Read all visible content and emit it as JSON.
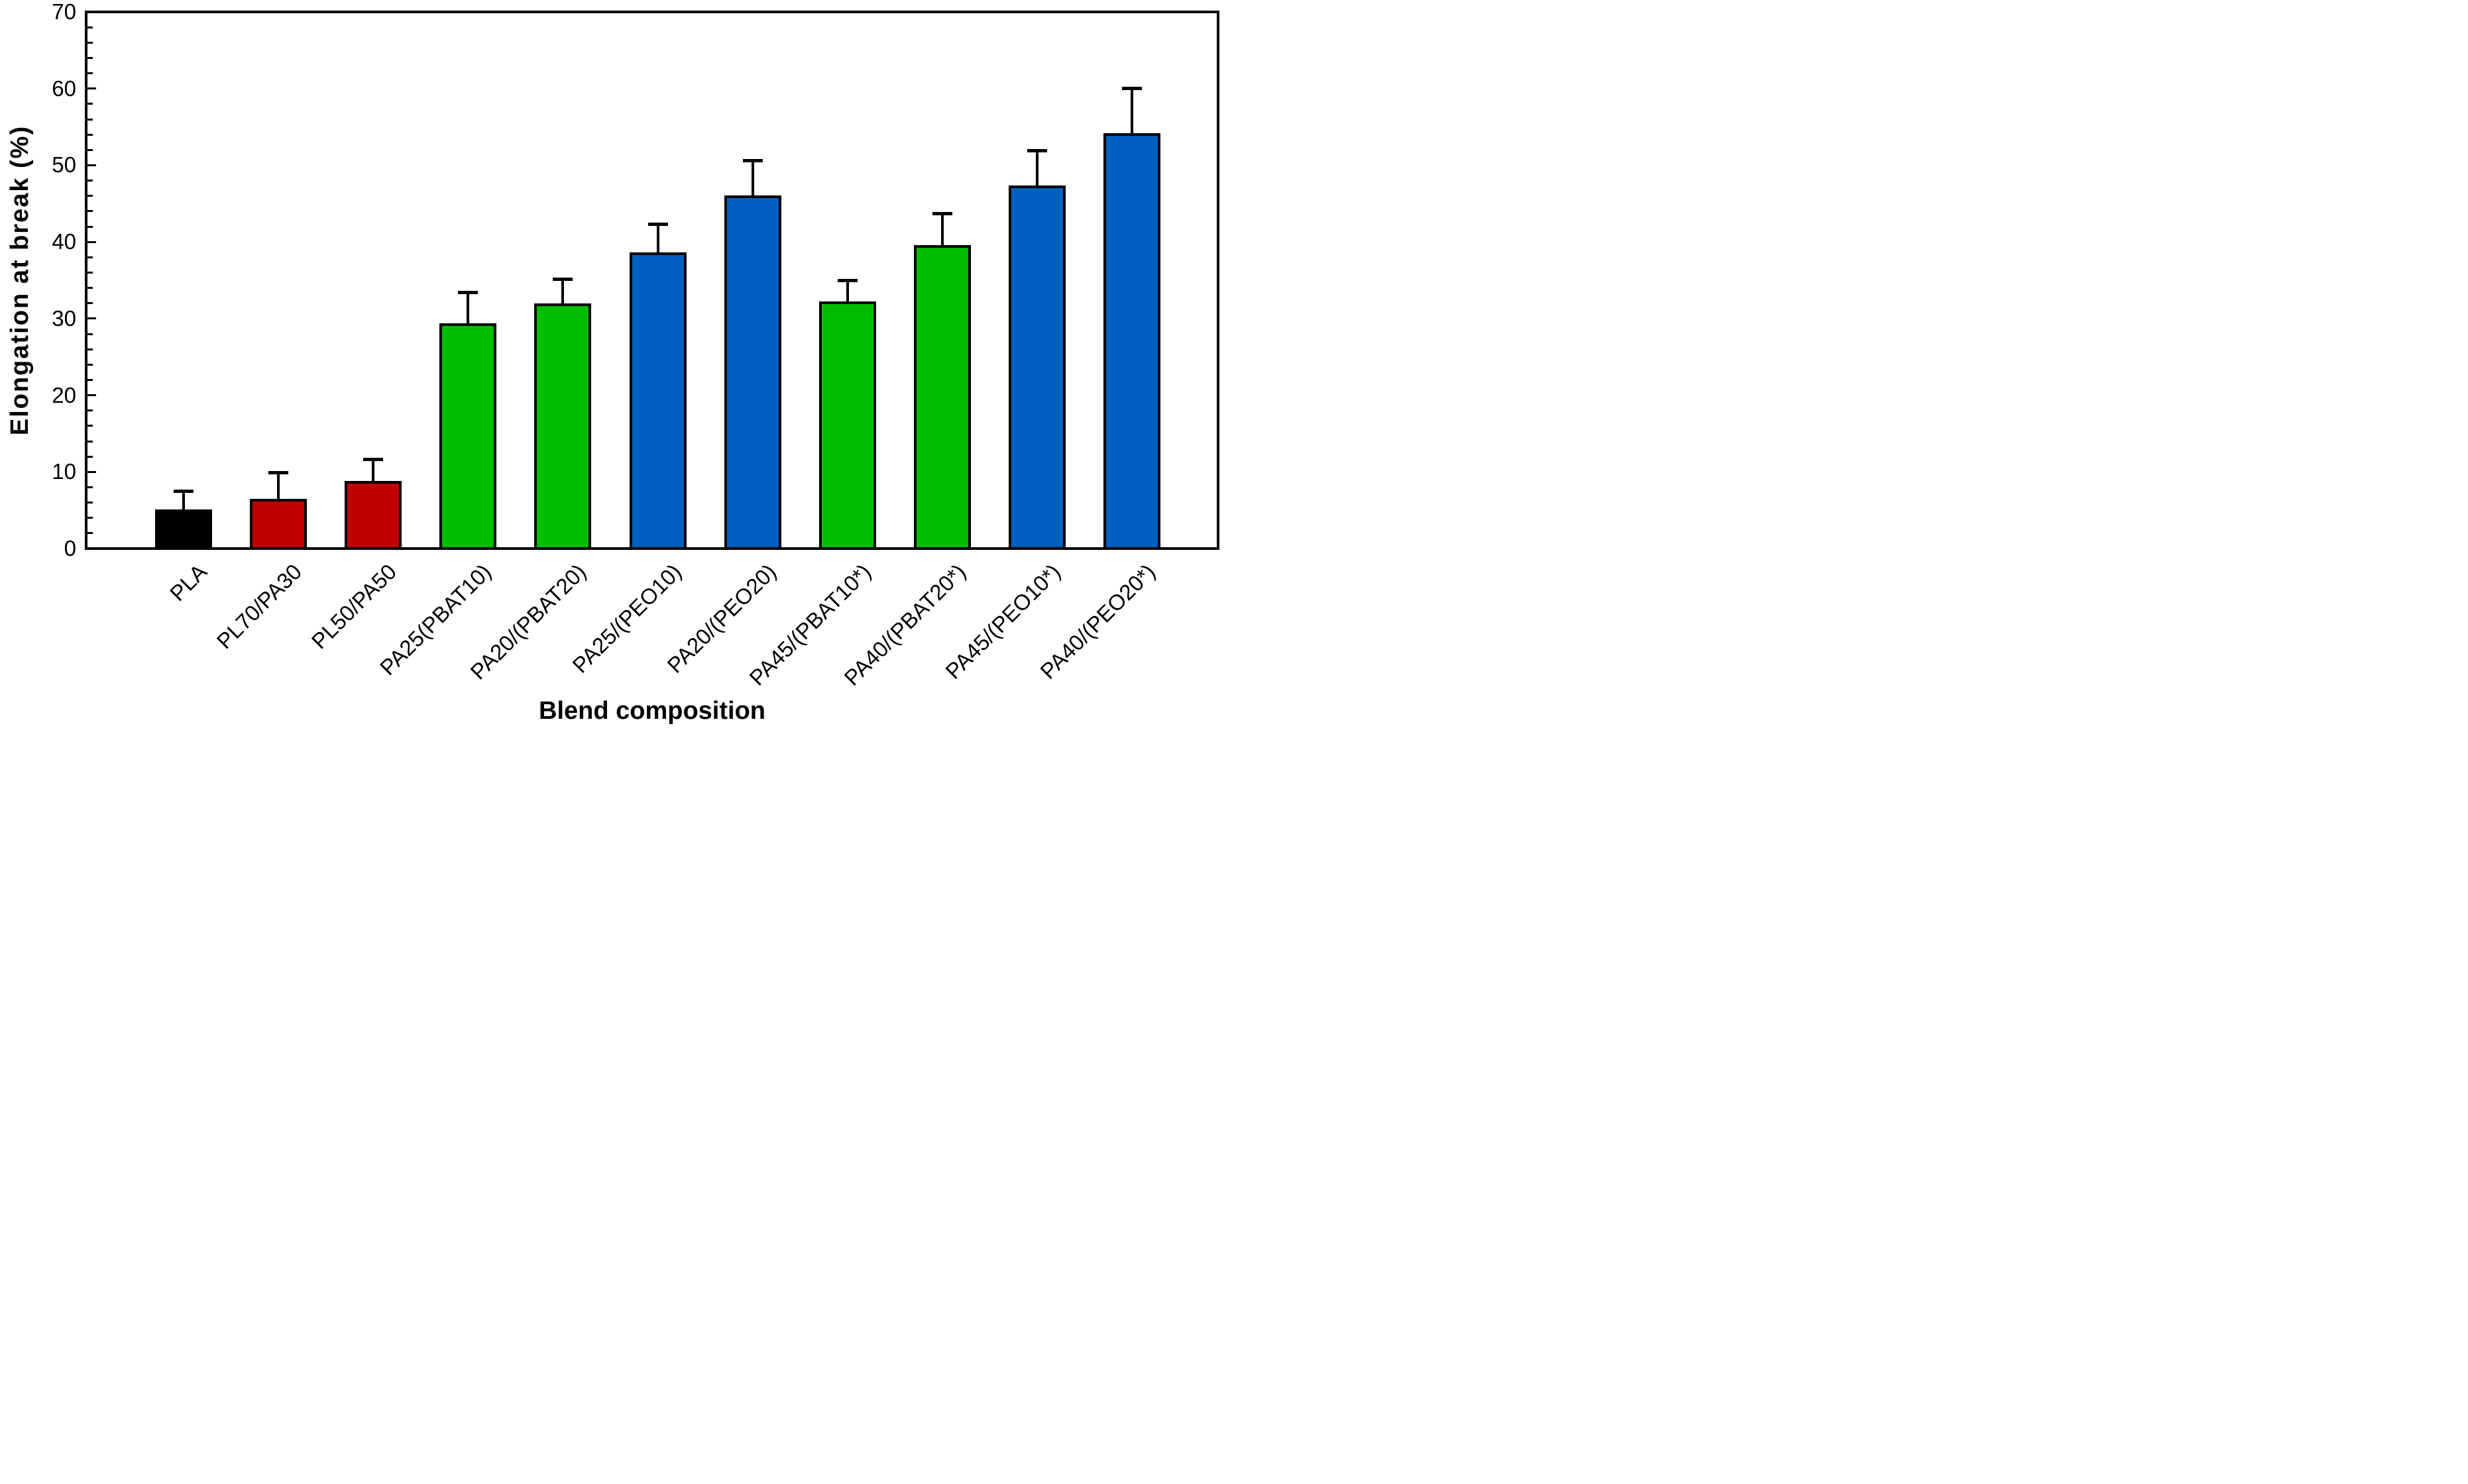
{
  "chart_data": {
    "type": "bar",
    "title": "",
    "xlabel": "Blend composition",
    "ylabel": "Elongation at break (%)",
    "ylim": [
      0,
      70
    ],
    "y_major_ticks": [
      0,
      10,
      20,
      30,
      40,
      50,
      60,
      70
    ],
    "y_tick_labels": [
      "0",
      "10",
      "20",
      "30",
      "40",
      "50",
      "60",
      "70"
    ],
    "y_minor_tick_step": 2,
    "grid": "off",
    "legend": "none",
    "tick_direction": "in",
    "categories": [
      "PLA",
      "PL70/PA30",
      "PL50/PA50",
      "PA25(PBAT10)",
      "PA20/(PBAT20)",
      "PA25/(PEO10)",
      "PA20/(PEO20)",
      "PA45/(PBAT10*)",
      "PA40/(PBAT20*)",
      "PA45/(PEO10*)",
      "PA40/(PEO20*)"
    ],
    "values": [
      5.1,
      6.5,
      8.8,
      29.4,
      32.0,
      38.6,
      46.1,
      32.2,
      39.6,
      47.4,
      54.2
    ],
    "errors_plus": [
      2.4,
      3.4,
      2.8,
      4.0,
      3.1,
      3.7,
      4.5,
      2.8,
      4.1,
      4.5,
      5.8
    ],
    "bar_color_names": [
      "black",
      "red",
      "red",
      "green",
      "green",
      "blue",
      "blue",
      "green",
      "green",
      "blue",
      "blue"
    ],
    "x_label_rotation_deg": 45
  },
  "palette": {
    "black": "#000000",
    "red": "#C00000",
    "green": "#00BD00",
    "blue": "#0060BF"
  },
  "frame": {
    "stroke": "#000000",
    "background": "#FFFFFF"
  }
}
